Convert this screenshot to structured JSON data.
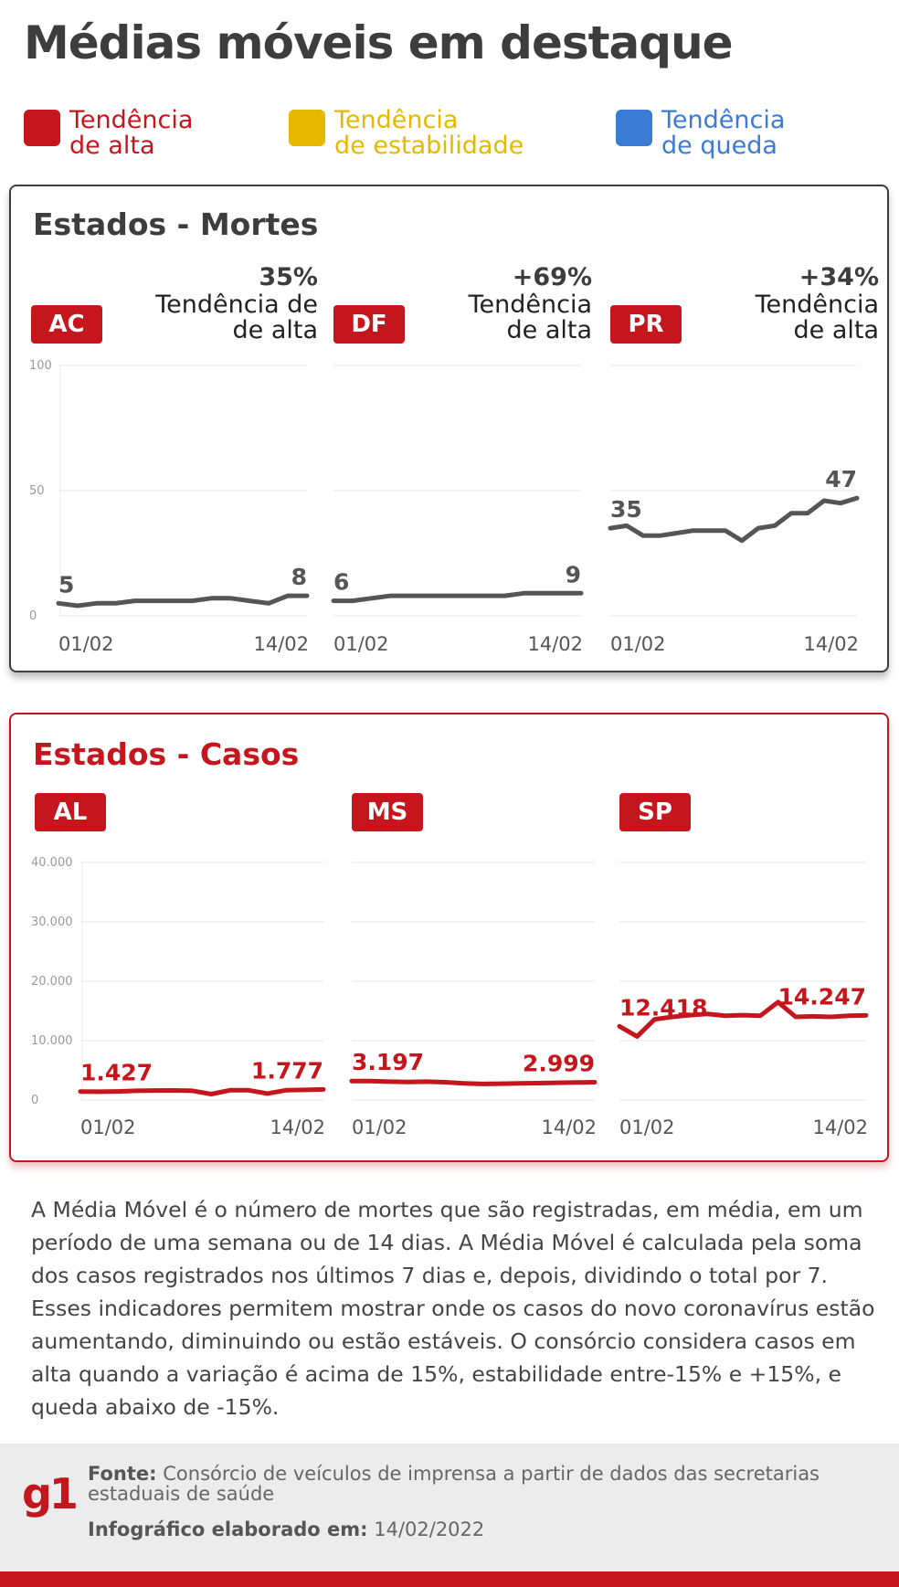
{
  "title": "Médias móveis em destaque",
  "legend": [
    {
      "line1": "Tendência",
      "line2": "de alta",
      "color": "#c4161c"
    },
    {
      "line1": "Tendência",
      "line2": "de estabilidade",
      "color": "#e6b800"
    },
    {
      "line1": "Tendência",
      "line2": "de queda",
      "color": "#3a7bd5"
    }
  ],
  "mortes": {
    "title": "Estados - Mortes",
    "colors": {
      "line": "#555555",
      "label": "#555555",
      "title": "#3d3d3d"
    }
  },
  "casos": {
    "title": "Estados - Casos",
    "colors": {
      "line": "#c4161c",
      "label": "#c4161c",
      "title": "#c4161c"
    }
  },
  "chart_data": [
    {
      "type": "line",
      "group": "Estados - Mortes",
      "state": "AC",
      "pct": "35%",
      "trend_line1": "Tendência de",
      "trend_line2": "de alta",
      "x_start": "01/02",
      "x_end": "14/02",
      "ylim": [
        0,
        100
      ],
      "yticks": [
        "0",
        "50",
        "100"
      ],
      "values": [
        5,
        4,
        5,
        5,
        6,
        6,
        6,
        6,
        7,
        7,
        6,
        5,
        8,
        8
      ],
      "first_label": "5",
      "last_label": "8"
    },
    {
      "type": "line",
      "group": "Estados - Mortes",
      "state": "DF",
      "pct": "+69%",
      "trend_line1": "Tendência",
      "trend_line2": "de alta",
      "x_start": "01/02",
      "x_end": "14/02",
      "ylim": [
        0,
        100
      ],
      "values": [
        6,
        6,
        7,
        8,
        8,
        8,
        8,
        8,
        8,
        8,
        9,
        9,
        9,
        9
      ],
      "first_label": "6",
      "last_label": "9"
    },
    {
      "type": "line",
      "group": "Estados - Mortes",
      "state": "PR",
      "pct": "+34%",
      "trend_line1": "Tendência",
      "trend_line2": "de alta",
      "x_start": "01/02",
      "x_end": "14/02",
      "ylim": [
        0,
        100
      ],
      "values": [
        35,
        36,
        32,
        32,
        33,
        34,
        34,
        34,
        30,
        35,
        36,
        41,
        41,
        46,
        45,
        47
      ],
      "first_label": "35",
      "last_label": "47"
    },
    {
      "type": "line",
      "group": "Estados - Casos",
      "state": "AL",
      "x_start": "01/02",
      "x_end": "14/02",
      "ylim": [
        0,
        40000
      ],
      "yticks": [
        "0",
        "10.000",
        "20.000",
        "30.000",
        "40.000"
      ],
      "values": [
        1427,
        1400,
        1450,
        1550,
        1600,
        1620,
        1550,
        1000,
        1650,
        1650,
        1100,
        1650,
        1700,
        1777
      ],
      "first_label": "1.427",
      "last_label": "1.777"
    },
    {
      "type": "line",
      "group": "Estados - Casos",
      "state": "MS",
      "x_start": "01/02",
      "x_end": "14/02",
      "ylim": [
        0,
        40000
      ],
      "values": [
        3197,
        3200,
        3100,
        3050,
        3100,
        3000,
        2800,
        2700,
        2750,
        2800,
        2850,
        2900,
        2950,
        2999
      ],
      "first_label": "3.197",
      "last_label": "2.999"
    },
    {
      "type": "line",
      "group": "Estados - Casos",
      "state": "SP",
      "x_start": "01/02",
      "x_end": "14/02",
      "ylim": [
        0,
        40000
      ],
      "values": [
        12418,
        10700,
        13600,
        14000,
        14300,
        14500,
        14200,
        14300,
        14200,
        16500,
        14000,
        14100,
        14000,
        14200,
        14247
      ],
      "first_label": "12.418",
      "last_label": "14.247"
    }
  ],
  "note": "A Média Móvel é o número de mortes que são registradas, em média, em um período de uma semana ou de 14 dias. A Média Móvel é calculada pela soma dos casos registrados nos últimos 7 dias e, depois, dividindo o total por 7. Esses indicadores permitem mostrar onde os casos do novo coronavírus estão aumentando, diminuindo ou estão estáveis. O consórcio considera casos em alta quando a variação é acima de 15%, estabilidade entre-15% e +15%, e queda abaixo de -15%.",
  "footer": {
    "logo": "g1",
    "source_label": "Fonte:",
    "source_text": "Consórcio de veículos de imprensa a partir de dados das secretarias estaduais de saúde",
    "made_label": "Infográfico elaborado em:",
    "made_date": "14/02/2022"
  }
}
